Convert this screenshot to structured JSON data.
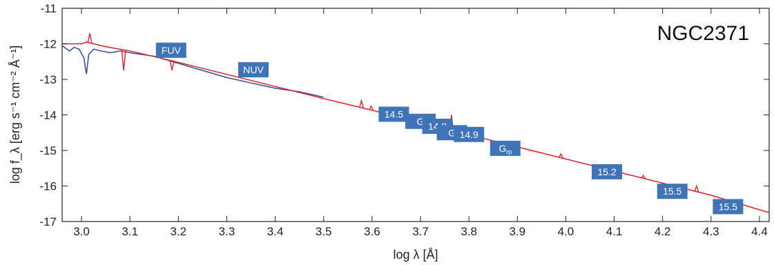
{
  "chart_data": {
    "type": "line",
    "title": "NGC2371",
    "xlabel": "log λ [Å]",
    "ylabel": "log f_λ [erg s⁻¹ cm⁻² Å⁻¹]",
    "xlim": [
      2.96,
      4.42
    ],
    "ylim": [
      -17,
      -11
    ],
    "x_ticks": [
      3.0,
      3.1,
      3.2,
      3.3,
      3.4,
      3.5,
      3.6,
      3.7,
      3.8,
      3.9,
      4.0,
      4.1,
      4.2,
      4.3,
      4.4
    ],
    "x_tick_labels": [
      "3.0",
      "3.1",
      "3.2",
      "3.3",
      "3.4",
      "3.5",
      "3.6",
      "3.7",
      "3.8",
      "3.9",
      "4.0",
      "4.1",
      "4.2",
      "4.3",
      "4.4"
    ],
    "y_ticks": [
      -17,
      -16,
      -15,
      -14,
      -13,
      -12,
      -11
    ],
    "y_tick_labels": [
      "-17",
      "-16",
      "-15",
      "-14",
      "-13",
      "-12",
      "-11"
    ],
    "grid": false,
    "series": [
      {
        "color": "#2b4c9a",
        "x": [
          2.96,
          2.975,
          2.985,
          2.995,
          3.005,
          3.01,
          3.015,
          3.025,
          3.04,
          3.06,
          3.08,
          3.1,
          3.15,
          3.2,
          3.25,
          3.3,
          3.35,
          3.4,
          3.45,
          3.5
        ],
        "y": [
          -12.05,
          -12.2,
          -12.1,
          -12.15,
          -12.4,
          -12.85,
          -12.3,
          -12.15,
          -12.2,
          -12.25,
          -12.2,
          -12.25,
          -12.35,
          -12.55,
          -12.75,
          -12.95,
          -13.1,
          -13.25,
          -13.35,
          -13.5
        ]
      },
      {
        "color": "#e0202a",
        "x": [
          2.96,
          3.0,
          3.01,
          3.05,
          3.1,
          3.2,
          3.3,
          3.4,
          3.5,
          3.6,
          3.7,
          3.8,
          3.9,
          4.0,
          4.1,
          4.2,
          4.3,
          4.42
        ],
        "y": [
          -12.0,
          -12.0,
          -11.95,
          -12.08,
          -12.2,
          -12.52,
          -12.86,
          -13.2,
          -13.54,
          -13.87,
          -14.22,
          -14.56,
          -14.9,
          -15.24,
          -15.58,
          -15.92,
          -16.26,
          -16.75
        ]
      }
    ],
    "red_features": [
      {
        "x": 3.017,
        "y": -11.7
      },
      {
        "x": 3.087,
        "y": -12.75
      },
      {
        "x": 3.187,
        "y": -12.75
      },
      {
        "x": 3.578,
        "y": -13.6
      },
      {
        "x": 3.598,
        "y": -13.75
      },
      {
        "x": 3.764,
        "y": -14.0
      },
      {
        "x": 3.82,
        "y": -14.4
      },
      {
        "x": 3.99,
        "y": -15.1
      },
      {
        "x": 4.16,
        "y": -15.7
      },
      {
        "x": 4.27,
        "y": -16.0
      }
    ],
    "photometry": [
      {
        "label": "FUV",
        "sub": "",
        "x": 3.185,
        "y": -12.18
      },
      {
        "label": "NUV",
        "sub": "",
        "x": 3.355,
        "y": -12.73
      },
      {
        "label": "14.5",
        "sub": "",
        "x": 3.645,
        "y": -13.98
      },
      {
        "label": "G",
        "sub": "",
        "x": 3.7,
        "y": -14.18
      },
      {
        "label": "14.8",
        "sub": "",
        "x": 3.735,
        "y": -14.32
      },
      {
        "label": "G",
        "sub": "",
        "x": 3.765,
        "y": -14.5
      },
      {
        "label": "14.9",
        "sub": "",
        "x": 3.8,
        "y": -14.55
      },
      {
        "label": "G",
        "sub": "rp",
        "x": 3.875,
        "y": -14.94
      },
      {
        "label": "15.2",
        "sub": "",
        "x": 4.085,
        "y": -15.6
      },
      {
        "label": "15.5",
        "sub": "",
        "x": 4.22,
        "y": -16.15
      },
      {
        "label": "15.5",
        "sub": "",
        "x": 4.335,
        "y": -16.58
      }
    ]
  }
}
